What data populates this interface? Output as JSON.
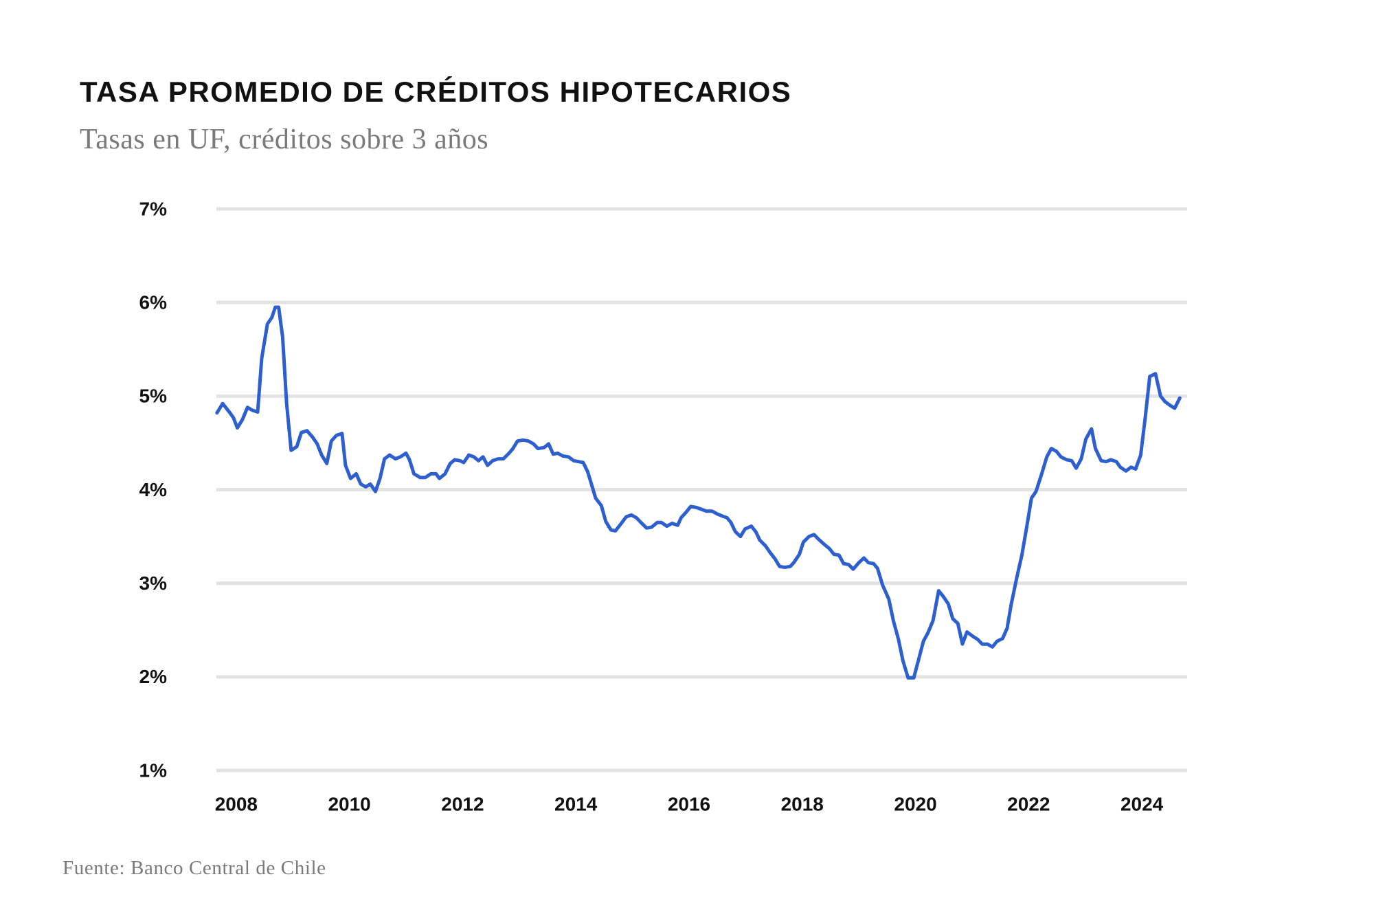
{
  "chart_data": {
    "type": "line",
    "title": "TASA PROMEDIO DE CRÉDITOS HIPOTECARIOS",
    "subtitle": "Tasas en UF, créditos sobre 3 años",
    "source": "Fuente: Banco Central de Chile",
    "x": [
      2007.66,
      2007.76,
      2007.89,
      2007.95,
      2008.02,
      2008.11,
      2008.2,
      2008.28,
      2008.38,
      2008.45,
      2008.55,
      2008.63,
      2008.69,
      2008.75,
      2008.82,
      2008.89,
      2008.97,
      2009.07,
      2009.15,
      2009.25,
      2009.35,
      2009.43,
      2009.51,
      2009.6,
      2009.68,
      2009.77,
      2009.87,
      2009.93,
      2010.02,
      2010.12,
      2010.2,
      2010.29,
      2010.37,
      2010.46,
      2010.54,
      2010.62,
      2010.71,
      2010.81,
      2010.9,
      2011.0,
      2011.06,
      2011.14,
      2011.25,
      2011.34,
      2011.44,
      2011.53,
      2011.59,
      2011.69,
      2011.78,
      2011.86,
      2011.95,
      2012.02,
      2012.11,
      2012.2,
      2012.28,
      2012.36,
      2012.44,
      2012.53,
      2012.63,
      2012.72,
      2012.82,
      2012.89,
      2012.97,
      2013.07,
      2013.16,
      2013.25,
      2013.33,
      2013.44,
      2013.52,
      2013.6,
      2013.68,
      2013.77,
      2013.87,
      2013.96,
      2014.05,
      2014.13,
      2014.21,
      2014.29,
      2014.35,
      2014.45,
      2014.53,
      2014.62,
      2014.7,
      2014.79,
      2014.89,
      2014.98,
      2015.07,
      2015.15,
      2015.25,
      2015.34,
      2015.44,
      2015.51,
      2015.61,
      2015.7,
      2015.8,
      2015.86,
      2015.95,
      2016.03,
      2016.13,
      2016.22,
      2016.31,
      2016.41,
      2016.5,
      2016.58,
      2016.67,
      2016.74,
      2016.82,
      2016.91,
      2016.99,
      2017.1,
      2017.18,
      2017.25,
      2017.35,
      2017.43,
      2017.52,
      2017.6,
      2017.69,
      2017.79,
      2017.85,
      2017.95,
      2018.02,
      2018.12,
      2018.21,
      2018.29,
      2018.38,
      2018.48,
      2018.56,
      2018.65,
      2018.73,
      2018.82,
      2018.9,
      2019.0,
      2019.09,
      2019.17,
      2019.26,
      2019.33,
      2019.42,
      2019.53,
      2019.61,
      2019.7,
      2019.78,
      2019.87,
      2019.97,
      2020.05,
      2020.14,
      2020.22,
      2020.31,
      2020.41,
      2020.49,
      2020.58,
      2020.66,
      2020.75,
      2020.83,
      2020.91,
      2021.02,
      2021.1,
      2021.18,
      2021.27,
      2021.36,
      2021.44,
      2021.54,
      2021.62,
      2021.69,
      2021.79,
      2021.88,
      2021.96,
      2022.05,
      2022.13,
      2022.23,
      2022.32,
      2022.4,
      2022.49,
      2022.57,
      2022.67,
      2022.76,
      2022.84,
      2022.93,
      2023.01,
      2023.11,
      2023.18,
      2023.28,
      2023.37,
      2023.45,
      2023.55,
      2023.62,
      2023.72,
      2023.81,
      2023.89,
      2023.98,
      2024.06,
      2024.14,
      2024.24,
      2024.33,
      2024.41,
      2024.5,
      2024.58,
      2024.67
    ],
    "series": [
      {
        "color": "#2d5fcf",
        "values": [
          4.82,
          4.92,
          4.82,
          4.77,
          4.66,
          4.75,
          4.88,
          4.85,
          4.83,
          5.4,
          5.77,
          5.84,
          5.95,
          5.95,
          5.63,
          4.92,
          4.42,
          4.46,
          4.61,
          4.63,
          4.56,
          4.49,
          4.37,
          4.28,
          4.52,
          4.58,
          4.6,
          4.26,
          4.12,
          4.17,
          4.06,
          4.03,
          4.06,
          3.98,
          4.12,
          4.33,
          4.37,
          4.33,
          4.35,
          4.39,
          4.32,
          4.17,
          4.13,
          4.13,
          4.17,
          4.17,
          4.12,
          4.17,
          4.28,
          4.32,
          4.31,
          4.29,
          4.37,
          4.35,
          4.31,
          4.35,
          4.26,
          4.31,
          4.33,
          4.33,
          4.39,
          4.44,
          4.52,
          4.53,
          4.52,
          4.49,
          4.44,
          4.45,
          4.49,
          4.38,
          4.39,
          4.36,
          4.35,
          4.31,
          4.3,
          4.29,
          4.19,
          4.03,
          3.91,
          3.83,
          3.66,
          3.57,
          3.56,
          3.63,
          3.71,
          3.73,
          3.7,
          3.65,
          3.59,
          3.6,
          3.65,
          3.65,
          3.61,
          3.64,
          3.62,
          3.7,
          3.76,
          3.82,
          3.81,
          3.79,
          3.77,
          3.77,
          3.74,
          3.72,
          3.7,
          3.65,
          3.55,
          3.5,
          3.58,
          3.61,
          3.55,
          3.46,
          3.4,
          3.33,
          3.26,
          3.18,
          3.17,
          3.18,
          3.22,
          3.31,
          3.44,
          3.5,
          3.52,
          3.47,
          3.42,
          3.37,
          3.31,
          3.3,
          3.21,
          3.2,
          3.15,
          3.22,
          3.27,
          3.22,
          3.21,
          3.16,
          2.98,
          2.83,
          2.6,
          2.4,
          2.17,
          1.99,
          1.99,
          2.17,
          2.38,
          2.47,
          2.6,
          2.92,
          2.86,
          2.78,
          2.62,
          2.57,
          2.35,
          2.48,
          2.43,
          2.4,
          2.35,
          2.35,
          2.32,
          2.38,
          2.41,
          2.52,
          2.77,
          3.06,
          3.3,
          3.58,
          3.91,
          3.98,
          4.17,
          4.35,
          4.44,
          4.41,
          4.35,
          4.32,
          4.31,
          4.23,
          4.33,
          4.54,
          4.65,
          4.44,
          4.31,
          4.3,
          4.32,
          4.3,
          4.24,
          4.2,
          4.24,
          4.22,
          4.37,
          4.77,
          5.21,
          5.24,
          5.0,
          4.94,
          4.9,
          4.87,
          4.98
        ]
      }
    ],
    "xlim": [
      2007.65,
      2024.8
    ],
    "xticks": [
      2008,
      2010,
      2012,
      2014,
      2016,
      2018,
      2020,
      2022,
      2024
    ],
    "ylim": [
      1,
      7
    ],
    "yticks": [
      {
        "value": 1,
        "label": "1%"
      },
      {
        "value": 2,
        "label": "2%"
      },
      {
        "value": 3,
        "label": "3%"
      },
      {
        "value": 4,
        "label": "4%"
      },
      {
        "value": 5,
        "label": "5%"
      },
      {
        "value": 6,
        "label": "6%"
      },
      {
        "value": 7,
        "label": "7%"
      }
    ],
    "grid": true
  }
}
